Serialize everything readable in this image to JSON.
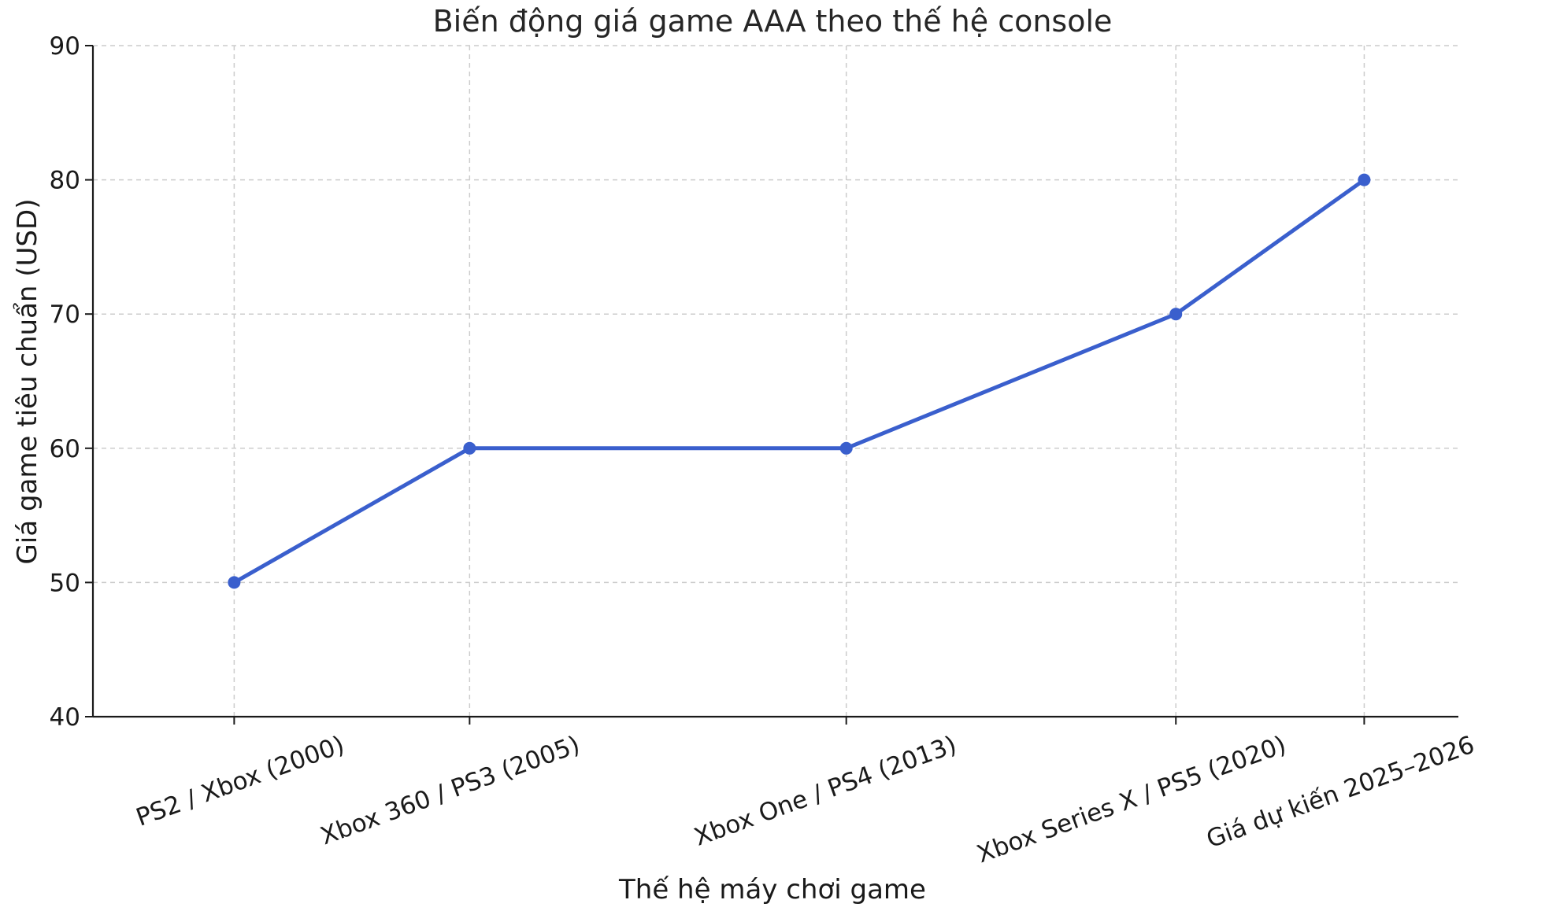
{
  "chart_data": {
    "type": "line",
    "title": "Biến động giá game AAA theo thế hệ console",
    "xlabel": "Thế hệ máy chơi game",
    "ylabel": "Giá game tiêu chuẩn (USD)",
    "categories": [
      "PS2 / Xbox (2000)",
      "Xbox 360 / PS3 (2005)",
      "Xbox One / PS4 (2013)",
      "Xbox Series X / PS5 (2020)",
      "Giá dự kiến 2025–2026"
    ],
    "x": [
      2000,
      2005,
      2013,
      2020,
      2024
    ],
    "values": [
      50,
      60,
      60,
      70,
      80
    ],
    "ylim": [
      40,
      90
    ],
    "yticks": [
      40,
      50,
      60,
      70,
      80,
      90
    ],
    "grid": true,
    "line_color": "#3a5fcd"
  }
}
